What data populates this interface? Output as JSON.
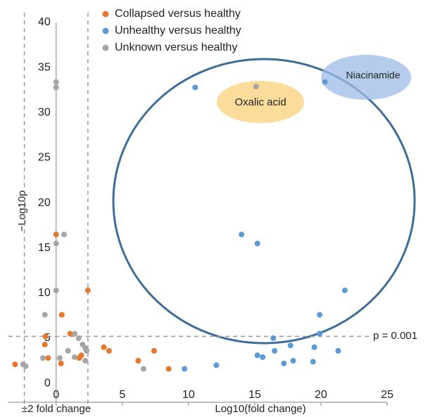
{
  "chart_data": {
    "type": "scatter",
    "x_label": "Log10(fold change)",
    "y_label": "−Log10p",
    "xlim": [
      -3.6,
      25
    ],
    "ylim": [
      -2.1,
      40
    ],
    "xticks": [
      0,
      5,
      10,
      15,
      20,
      25
    ],
    "yticks": [
      0,
      5,
      10,
      15,
      20,
      25,
      30,
      35,
      40
    ],
    "fold_change_lines": [
      -2.4,
      2.4
    ],
    "fold_change_label": "±2 fold change",
    "p_threshold": 5.2,
    "p_threshold_label": "p = 0.001",
    "annotations": [
      "Oxalic acid",
      "Niacinamide"
    ],
    "series": [
      {
        "name": "Collapsed versus healthy",
        "color": "#e8772e",
        "x": [
          -3.1,
          -0.85,
          -0.8,
          -0.6,
          0,
          0.37,
          0.43,
          1.06,
          1.75,
          1.9,
          2.4,
          3.6,
          4.0,
          6.2,
          7.4,
          8.5
        ],
        "values": [
          2.1,
          4.3,
          5.2,
          2.8,
          16.5,
          2.2,
          7.6,
          5.5,
          2.8,
          3.1,
          10.3,
          4.0,
          3.6,
          2.5,
          3.6,
          1.6
        ]
      },
      {
        "name": "Unhealthy versus healthy",
        "color": "#5b9bd5",
        "x": [
          10.5,
          9.7,
          12.1,
          14.0,
          15.2,
          15.2,
          15.6,
          16.4,
          16.5,
          17.2,
          17.7,
          17.9,
          19.4,
          19.5,
          19.9,
          19.9,
          20.3,
          21.3,
          21.8
        ],
        "values": [
          32.8,
          1.6,
          2.0,
          16.5,
          15.5,
          3.1,
          2.9,
          5.0,
          3.6,
          2.2,
          4.2,
          2.5,
          2.4,
          4.0,
          7.6,
          5.5,
          33.4,
          3.6,
          10.3
        ]
      },
      {
        "name": "Unknown versus healthy",
        "color": "#a5a5a5",
        "x": [
          -2.5,
          -2.3,
          -1.0,
          -0.85,
          0,
          0,
          0,
          0,
          0.27,
          0.6,
          0.9,
          1.4,
          1.7,
          1.4,
          2.0,
          2.2,
          2.2,
          2.3,
          6.6,
          15.1
        ],
        "values": [
          2.1,
          1.9,
          2.8,
          7.6,
          33.4,
          32.8,
          15.5,
          10.3,
          2.8,
          16.5,
          3.6,
          5.5,
          5.0,
          2.9,
          4.3,
          3.9,
          2.5,
          3.6,
          1.6,
          32.9
        ]
      }
    ]
  }
}
